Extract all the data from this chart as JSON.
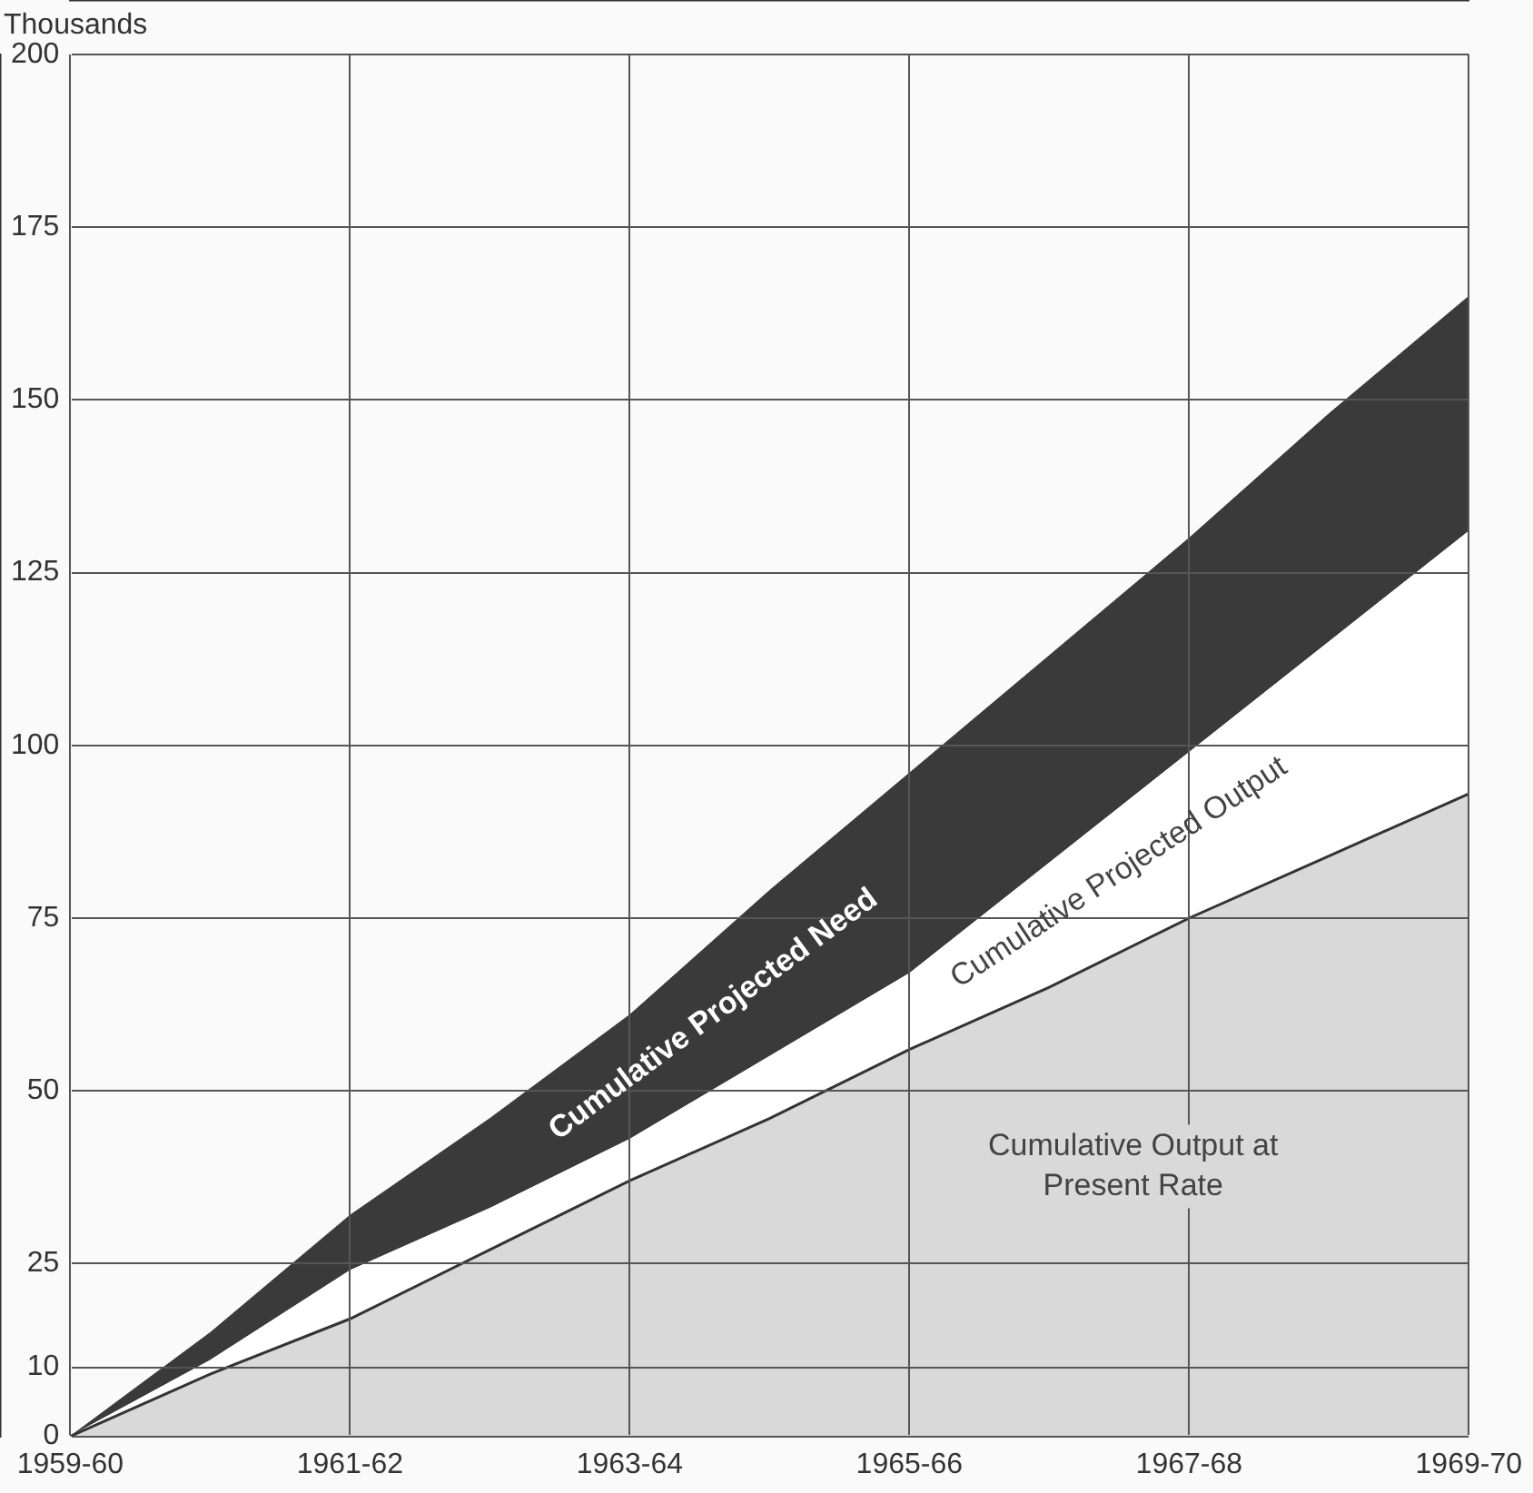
{
  "chart_data": {
    "type": "area",
    "ylabel": "Thousands",
    "categories": [
      "1959-60",
      null,
      "1961-62",
      null,
      "1963-64",
      null,
      "1965-66",
      null,
      "1967-68",
      null,
      "1969-70"
    ],
    "series": [
      {
        "name": "Cumulative Output at Present Rate",
        "color": "#d9d9d9",
        "values": [
          0,
          9,
          17,
          27,
          37,
          46,
          56,
          65,
          75,
          84,
          93
        ]
      },
      {
        "name": "Cumulative Projected Output",
        "color": "#ffffff",
        "values": [
          0,
          11,
          24,
          33,
          43,
          55,
          67,
          83,
          99,
          115,
          131
        ]
      },
      {
        "name": "Cumulative Projected Need",
        "color": "#3a3a3a",
        "values": [
          0,
          15,
          32,
          46,
          61,
          79,
          96,
          113,
          130,
          148,
          165
        ]
      }
    ],
    "ylim": [
      0,
      200
    ],
    "yticks": [
      0,
      10,
      25,
      50,
      75,
      100,
      125,
      150,
      175,
      200
    ],
    "grid": true,
    "legend": false
  }
}
